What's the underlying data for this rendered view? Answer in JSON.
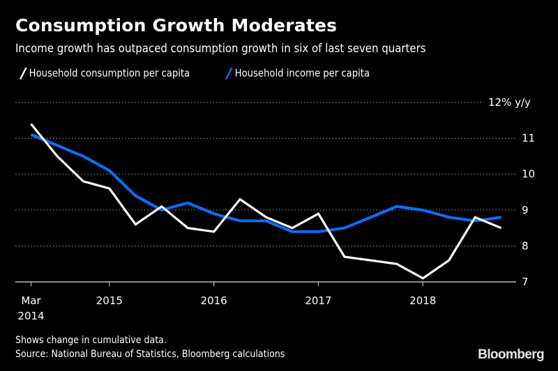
{
  "chart_data": {
    "type": "line",
    "title": "Consumption Growth Moderates",
    "subtitle": "Income growth has outpaced consumption growth in six of last seven quarters",
    "xlabel": "",
    "ylabel": "% y/y",
    "x": [
      "Mar 2014",
      "Jun 2014",
      "Sep 2014",
      "Dec 2014",
      "Mar 2015",
      "Jun 2015",
      "Sep 2015",
      "Dec 2015",
      "Mar 2016",
      "Jun 2016",
      "Sep 2016",
      "Dec 2016",
      "Mar 2017",
      "Jun 2017",
      "Sep 2017",
      "Dec 2017",
      "Mar 2018",
      "Jun 2018",
      "Sep 2018"
    ],
    "series": [
      {
        "name": "Household consumption per capita",
        "color": "#ffffff",
        "values": [
          11.4,
          10.5,
          9.8,
          9.6,
          8.6,
          9.1,
          8.5,
          8.4,
          9.3,
          8.8,
          8.5,
          8.9,
          7.7,
          7.6,
          7.5,
          7.1,
          7.6,
          8.8,
          8.5
        ]
      },
      {
        "name": "Household income per capita",
        "color": "#0a6fff",
        "values": [
          11.1,
          10.8,
          10.5,
          10.1,
          9.4,
          9.0,
          9.2,
          8.9,
          8.7,
          8.7,
          8.4,
          8.4,
          8.5,
          8.8,
          9.1,
          9.0,
          8.8,
          8.7,
          8.8
        ]
      }
    ],
    "ylim": [
      7,
      12
    ],
    "yticks": [
      7,
      8,
      9,
      10,
      11,
      12
    ],
    "ytick_labels": [
      "7",
      "8",
      "9",
      "10",
      "11",
      "12% y/y"
    ],
    "xticks": [
      {
        "index": 0,
        "label": [
          "Mar",
          "2014"
        ]
      },
      {
        "index": 3,
        "label": [
          "2015"
        ]
      },
      {
        "index": 7,
        "label": [
          "2016"
        ]
      },
      {
        "index": 11,
        "label": [
          "2017"
        ]
      },
      {
        "index": 15,
        "label": [
          "2018"
        ]
      }
    ],
    "grid": true,
    "legend_position": "top-left",
    "y_axis_side": "right"
  },
  "footer": {
    "note": "Shows change in cumulative data.",
    "source": "Source: National Bureau of Statistics, Bloomberg calculations",
    "brand": "Bloomberg"
  }
}
